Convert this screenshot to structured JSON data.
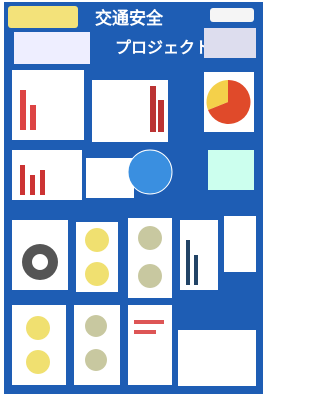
{
  "title": {
    "line1": "交通安全",
    "line2": "プロジェクト"
  }
}
